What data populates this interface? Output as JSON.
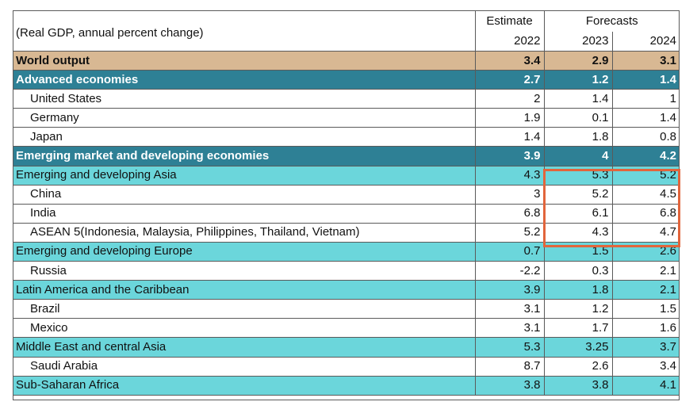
{
  "header": {
    "caption": "(Real GDP, annual percent change)",
    "estimate_label": "Estimate",
    "forecasts_label": "Forecasts",
    "years": [
      "2022",
      "2023",
      "2024"
    ]
  },
  "rows": [
    {
      "name": "World output",
      "v2022": "3.4",
      "v2023": "2.9",
      "v2024": "3.1",
      "style": "world"
    },
    {
      "name": "Advanced economies",
      "v2022": "2.7",
      "v2023": "1.2",
      "v2024": "1.4",
      "style": "dark"
    },
    {
      "name": "United States",
      "v2022": "2",
      "v2023": "1.4",
      "v2024": "1",
      "style": "sub"
    },
    {
      "name": "Germany",
      "v2022": "1.9",
      "v2023": "0.1",
      "v2024": "1.4",
      "style": "sub"
    },
    {
      "name": "Japan",
      "v2022": "1.4",
      "v2023": "1.8",
      "v2024": "0.8",
      "style": "sub"
    },
    {
      "name": "Emerging market and developing economies",
      "v2022": "3.9",
      "v2023": "4",
      "v2024": "4.2",
      "style": "dark"
    },
    {
      "name": "Emerging and developing Asia",
      "v2022": "4.3",
      "v2023": "5.3",
      "v2024": "5.2",
      "style": "light"
    },
    {
      "name": "China",
      "v2022": "3",
      "v2023": "5.2",
      "v2024": "4.5",
      "style": "sub"
    },
    {
      "name": "India",
      "v2022": "6.8",
      "v2023": "6.1",
      "v2024": "6.8",
      "style": "sub"
    },
    {
      "name": "ASEAN 5(Indonesia, Malaysia, Philippines, Thailand, Vietnam)",
      "v2022": "5.2",
      "v2023": "4.3",
      "v2024": "4.7",
      "style": "sub"
    },
    {
      "name": "Emerging and developing Europe",
      "v2022": "0.7",
      "v2023": "1.5",
      "v2024": "2.6",
      "style": "light"
    },
    {
      "name": "Russia",
      "v2022": "-2.2",
      "v2023": "0.3",
      "v2024": "2.1",
      "style": "sub"
    },
    {
      "name": "Latin America and the Caribbean",
      "v2022": "3.9",
      "v2023": "1.8",
      "v2024": "2.1",
      "style": "light"
    },
    {
      "name": "Brazil",
      "v2022": "3.1",
      "v2023": "1.2",
      "v2024": "1.5",
      "style": "sub"
    },
    {
      "name": "Mexico",
      "v2022": "3.1",
      "v2023": "1.7",
      "v2024": "1.6",
      "style": "sub"
    },
    {
      "name": "Middle East and central Asia",
      "v2022": "5.3",
      "v2023": "3.25",
      "v2024": "3.7",
      "style": "light"
    },
    {
      "name": "Saudi Arabia",
      "v2022": "8.7",
      "v2023": "2.6",
      "v2024": "3.4",
      "style": "sub"
    },
    {
      "name": "Sub-Saharan Africa",
      "v2022": "3.8",
      "v2023": "3.8",
      "v2024": "4.1",
      "style": "light"
    }
  ],
  "colors": {
    "world": "#d8b893",
    "dark": "#2e8095",
    "light": "#6bd6db",
    "highlight": "#e2653c"
  }
}
